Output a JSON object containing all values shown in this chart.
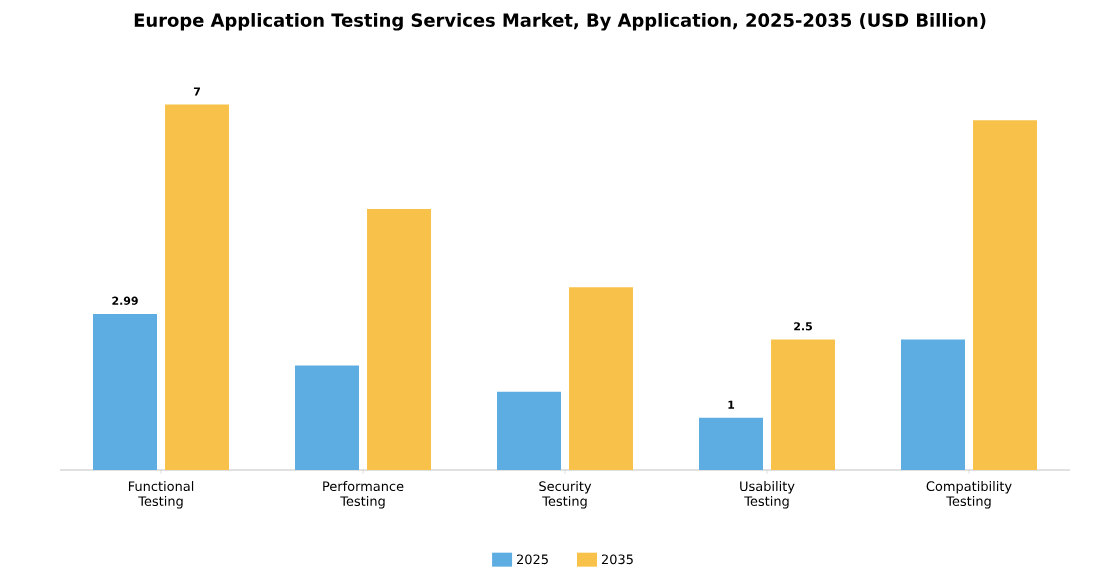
{
  "chart_data": {
    "type": "bar",
    "title": "Europe Application Testing Services Market, By Application, 2025-2035 (USD Billion)",
    "categories": [
      "Functional Testing",
      "Performance Testing",
      "Security Testing",
      "Usability Testing",
      "Compatibility Testing"
    ],
    "series": [
      {
        "name": "2025",
        "color": "#5dade2",
        "values": [
          2.99,
          2.0,
          1.5,
          1.0,
          2.5
        ],
        "value_labels": [
          "2.99",
          null,
          null,
          "1",
          null
        ]
      },
      {
        "name": "2035",
        "color": "#f8c24a",
        "values": [
          7.0,
          5.0,
          3.5,
          2.5,
          6.7
        ],
        "value_labels": [
          "7",
          null,
          null,
          "2.5",
          null
        ]
      }
    ],
    "legend": "bottom"
  }
}
